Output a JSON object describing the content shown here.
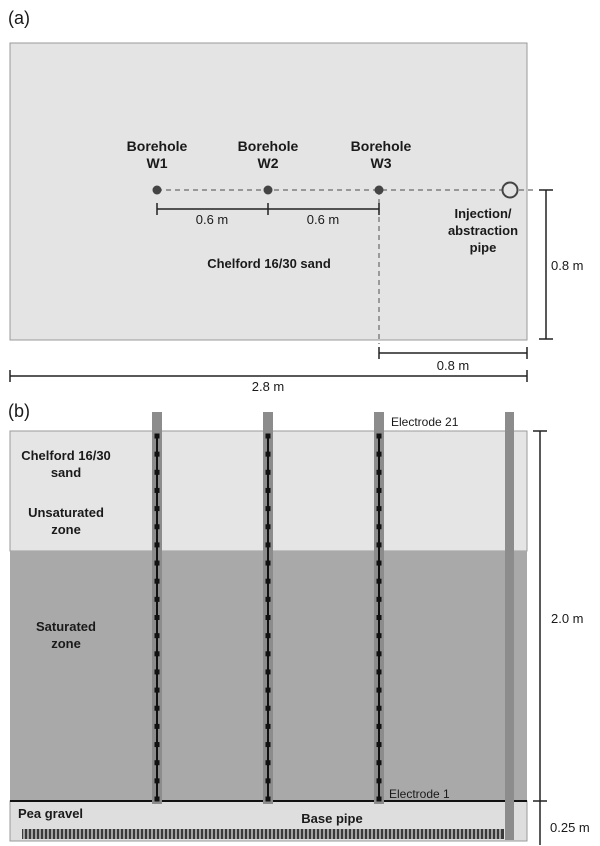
{
  "panel_a": {
    "label": "(a)",
    "boreholes": [
      {
        "name_line1": "Borehole",
        "name_line2": "W1"
      },
      {
        "name_line1": "Borehole",
        "name_line2": "W2"
      },
      {
        "name_line1": "Borehole",
        "name_line2": "W3"
      }
    ],
    "spacing_w1_w2": "0.6 m",
    "spacing_w2_w3": "0.6 m",
    "pipe_label_line1": "Injection/",
    "pipe_label_line2": "abstraction",
    "pipe_label_line3": "pipe",
    "material_label": "Chelford 16/30 sand",
    "width_dim": "0.8 m",
    "offset_dim": "0.8 m",
    "length_dim": "2.8 m"
  },
  "panel_b": {
    "label": "(b)",
    "top_electrode": "Electrode 21",
    "bottom_electrode": "Electrode 1",
    "sand_line1": "Chelford 16/30",
    "sand_line2": "sand",
    "unsat_line1": "Unsaturated",
    "unsat_line2": "zone",
    "sat_line1": "Saturated",
    "sat_line2": "zone",
    "gravel_label": "Pea gravel",
    "base_pipe_label": "Base pipe",
    "height_dim": "2.0 m",
    "gravel_dim": "0.25 m"
  }
}
